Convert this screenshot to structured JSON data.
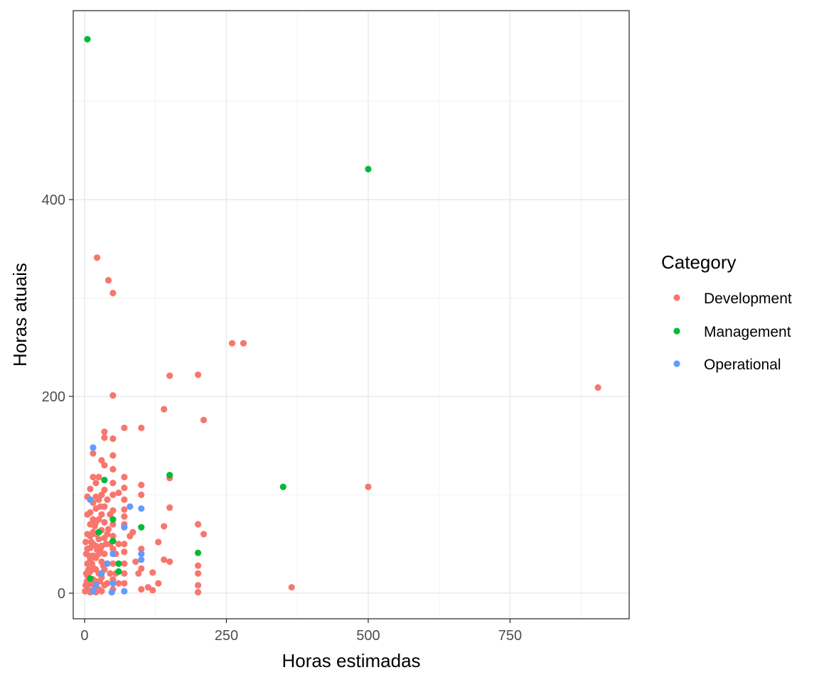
{
  "chart_data": {
    "type": "scatter",
    "xlabel": "Horas estimadas",
    "ylabel": "Horas atuais",
    "xlim": [
      -20,
      960
    ],
    "ylim": [
      -26,
      592
    ],
    "x_ticks": [
      0,
      250,
      500,
      750
    ],
    "y_ticks": [
      0,
      200,
      400
    ],
    "x_tick_labels": [
      "0",
      "250",
      "500",
      "750"
    ],
    "y_tick_labels": [
      "0",
      "200",
      "400"
    ],
    "x_minor_ticks": [
      125,
      375,
      625,
      875
    ],
    "y_minor_ticks": [
      100,
      300,
      500
    ],
    "grid": true,
    "legend": {
      "title": "Category",
      "position": "right"
    },
    "series": [
      {
        "name": "Development",
        "color": "#F8766D",
        "points": [
          [
            905,
            209
          ],
          [
            500,
            108
          ],
          [
            365,
            6
          ],
          [
            280,
            254
          ],
          [
            260,
            254
          ],
          [
            210,
            176
          ],
          [
            210,
            60
          ],
          [
            200,
            222
          ],
          [
            200,
            70
          ],
          [
            200,
            28
          ],
          [
            200,
            20
          ],
          [
            200,
            8
          ],
          [
            200,
            1
          ],
          [
            150,
            221
          ],
          [
            150,
            117
          ],
          [
            150,
            87
          ],
          [
            150,
            32
          ],
          [
            140,
            187
          ],
          [
            140,
            68
          ],
          [
            140,
            34
          ],
          [
            130,
            52
          ],
          [
            130,
            10
          ],
          [
            120,
            21
          ],
          [
            120,
            3
          ],
          [
            112,
            6
          ],
          [
            100,
            168
          ],
          [
            100,
            110
          ],
          [
            100,
            100
          ],
          [
            100,
            45
          ],
          [
            100,
            25
          ],
          [
            100,
            4
          ],
          [
            95,
            20
          ],
          [
            90,
            32
          ],
          [
            85,
            62
          ],
          [
            80,
            58
          ],
          [
            70,
            168
          ],
          [
            70,
            118
          ],
          [
            70,
            107
          ],
          [
            70,
            95
          ],
          [
            70,
            85
          ],
          [
            70,
            78
          ],
          [
            70,
            70
          ],
          [
            70,
            50
          ],
          [
            70,
            42
          ],
          [
            70,
            30
          ],
          [
            70,
            20
          ],
          [
            70,
            10
          ],
          [
            60,
            102
          ],
          [
            60,
            50
          ],
          [
            60,
            30
          ],
          [
            60,
            10
          ],
          [
            50,
            305
          ],
          [
            50,
            201
          ],
          [
            50,
            157
          ],
          [
            50,
            140
          ],
          [
            50,
            126
          ],
          [
            50,
            112
          ],
          [
            50,
            100
          ],
          [
            50,
            84
          ],
          [
            50,
            70
          ],
          [
            50,
            58
          ],
          [
            50,
            45
          ],
          [
            50,
            30
          ],
          [
            50,
            14
          ],
          [
            50,
            4
          ],
          [
            42,
            318
          ],
          [
            40,
            95
          ],
          [
            40,
            60
          ],
          [
            40,
            30
          ],
          [
            40,
            10
          ],
          [
            35,
            164
          ],
          [
            35,
            158
          ],
          [
            35,
            130
          ],
          [
            35,
            105
          ],
          [
            35,
            88
          ],
          [
            35,
            72
          ],
          [
            35,
            56
          ],
          [
            35,
            40
          ],
          [
            35,
            24
          ],
          [
            35,
            8
          ],
          [
            30,
            135
          ],
          [
            30,
            100
          ],
          [
            30,
            80
          ],
          [
            30,
            64
          ],
          [
            30,
            48
          ],
          [
            30,
            32
          ],
          [
            30,
            16
          ],
          [
            30,
            2
          ],
          [
            25,
            118
          ],
          [
            25,
            95
          ],
          [
            25,
            75
          ],
          [
            25,
            55
          ],
          [
            25,
            40
          ],
          [
            25,
            20
          ],
          [
            25,
            4
          ],
          [
            22,
            341
          ],
          [
            20,
            112
          ],
          [
            20,
            98
          ],
          [
            20,
            86
          ],
          [
            20,
            72
          ],
          [
            20,
            60
          ],
          [
            20,
            48
          ],
          [
            20,
            36
          ],
          [
            20,
            24
          ],
          [
            20,
            12
          ],
          [
            20,
            1
          ],
          [
            15,
            142
          ],
          [
            15,
            118
          ],
          [
            15,
            92
          ],
          [
            15,
            75
          ],
          [
            15,
            62
          ],
          [
            15,
            50
          ],
          [
            15,
            38
          ],
          [
            15,
            26
          ],
          [
            15,
            14
          ],
          [
            15,
            3
          ],
          [
            10,
            106
          ],
          [
            10,
            95
          ],
          [
            10,
            82
          ],
          [
            10,
            70
          ],
          [
            10,
            58
          ],
          [
            10,
            46
          ],
          [
            10,
            34
          ],
          [
            10,
            22
          ],
          [
            10,
            10
          ],
          [
            10,
            1
          ],
          [
            5,
            98
          ],
          [
            5,
            80
          ],
          [
            5,
            60
          ],
          [
            5,
            45
          ],
          [
            5,
            30
          ],
          [
            5,
            18
          ],
          [
            5,
            6
          ],
          [
            3,
            40
          ],
          [
            3,
            20
          ],
          [
            2,
            8
          ],
          [
            1,
            2
          ],
          [
            45,
            20
          ],
          [
            45,
            50
          ],
          [
            45,
            80
          ],
          [
            55,
            20
          ],
          [
            55,
            40
          ],
          [
            28,
            88
          ],
          [
            28,
            45
          ],
          [
            18,
            68
          ],
          [
            12,
            52
          ],
          [
            8,
            38
          ],
          [
            42,
            65
          ],
          [
            38,
            50
          ],
          [
            33,
            28
          ],
          [
            27,
            12
          ],
          [
            22,
            44
          ],
          [
            17,
            8
          ],
          [
            13,
            30
          ],
          [
            7,
            24
          ],
          [
            4,
            12
          ],
          [
            2,
            52
          ]
        ]
      },
      {
        "name": "Management",
        "color": "#00BA38",
        "points": [
          [
            5,
            563
          ],
          [
            500,
            431
          ],
          [
            350,
            108
          ],
          [
            150,
            120
          ],
          [
            200,
            41
          ],
          [
            100,
            67
          ],
          [
            50,
            75
          ],
          [
            50,
            53
          ],
          [
            60,
            30
          ],
          [
            60,
            22
          ],
          [
            35,
            115
          ],
          [
            25,
            62
          ],
          [
            10,
            15
          ]
        ]
      },
      {
        "name": "Operational",
        "color": "#619CFF",
        "points": [
          [
            15,
            148
          ],
          [
            100,
            86
          ],
          [
            80,
            88
          ],
          [
            70,
            67
          ],
          [
            70,
            2
          ],
          [
            100,
            40
          ],
          [
            100,
            34
          ],
          [
            50,
            40
          ],
          [
            48,
            1
          ],
          [
            40,
            30
          ],
          [
            30,
            20
          ],
          [
            20,
            8
          ],
          [
            15,
            2
          ],
          [
            10,
            95
          ],
          [
            50,
            10
          ]
        ]
      }
    ]
  }
}
